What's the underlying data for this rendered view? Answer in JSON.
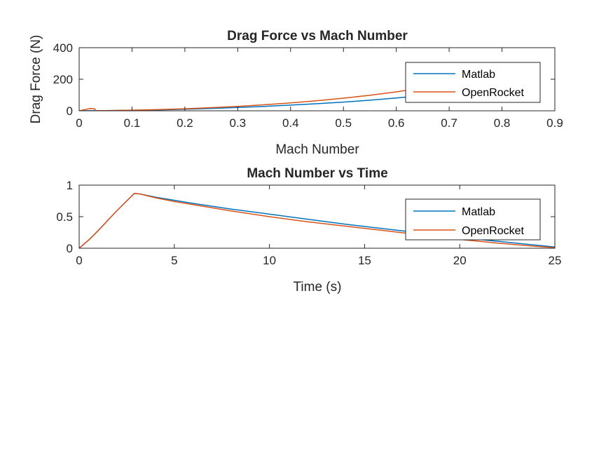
{
  "colors": {
    "matlab": "#0072BD",
    "openrocket": "#D95319",
    "axes": "#262626",
    "background": "#FFFFFF"
  },
  "chart_data": [
    {
      "type": "line",
      "title": "Drag Force vs Mach Number",
      "xlabel": "Mach Number",
      "ylabel": "Drag Force (N)",
      "xlim": [
        0,
        0.9
      ],
      "ylim": [
        0,
        400
      ],
      "xticks": [
        "0",
        "0.1",
        "0.2",
        "0.3",
        "0.4",
        "0.5",
        "0.6",
        "0.7",
        "0.8",
        "0.9"
      ],
      "yticks": [
        "0",
        "200",
        "400"
      ],
      "grid": false,
      "legend": {
        "placement": "top-right",
        "entries": [
          "Matlab",
          "OpenRocket"
        ]
      },
      "series": [
        {
          "name": "Matlab",
          "x": [
            0,
            0.05,
            0.1,
            0.15,
            0.2,
            0.25,
            0.3,
            0.35,
            0.4,
            0.45,
            0.5,
            0.55,
            0.6,
            0.65,
            0.7,
            0.75,
            0.8,
            0.85,
            0.87
          ],
          "y": [
            0,
            1,
            3,
            6,
            10,
            15,
            21,
            28,
            36,
            45,
            55,
            67,
            81,
            97,
            115,
            135,
            158,
            183,
            193
          ]
        },
        {
          "name": "OpenRocket",
          "x": [
            0,
            0.02,
            0.03,
            0.03,
            0.04,
            0.05,
            0.1,
            0.15,
            0.2,
            0.25,
            0.3,
            0.35,
            0.4,
            0.45,
            0.5,
            0.55,
            0.6,
            0.65,
            0.7,
            0.75,
            0.8,
            0.85,
            0.87
          ],
          "y": [
            0,
            14,
            12,
            0,
            1,
            1,
            4,
            8,
            13,
            20,
            28,
            38,
            50,
            64,
            80,
            98,
            120,
            146,
            175,
            207,
            243,
            283,
            300
          ]
        }
      ]
    },
    {
      "type": "line",
      "title": "Mach Number vs Time",
      "xlabel": "Time (s)",
      "ylabel": "",
      "xlim": [
        0,
        25
      ],
      "ylim": [
        0,
        1
      ],
      "xticks": [
        "0",
        "5",
        "10",
        "15",
        "20",
        "25"
      ],
      "yticks": [
        "0",
        "0.5",
        "1"
      ],
      "grid": false,
      "legend": {
        "placement": "top-right",
        "entries": [
          "Matlab",
          "OpenRocket"
        ]
      },
      "series": [
        {
          "name": "Matlab",
          "x": [
            0,
            0.5,
            1,
            1.5,
            2,
            2.5,
            2.9,
            3.2,
            4,
            5,
            6,
            8,
            10,
            12,
            14,
            16,
            18,
            20,
            22,
            24,
            25
          ],
          "y": [
            0,
            0.13,
            0.28,
            0.44,
            0.6,
            0.75,
            0.87,
            0.86,
            0.81,
            0.76,
            0.71,
            0.62,
            0.54,
            0.46,
            0.38,
            0.31,
            0.24,
            0.17,
            0.11,
            0.05,
            0.02
          ]
        },
        {
          "name": "OpenRocket",
          "x": [
            0,
            0.5,
            1,
            1.5,
            2,
            2.5,
            2.9,
            3.2,
            4,
            5,
            6,
            8,
            10,
            12,
            14,
            16,
            18,
            20,
            22,
            24,
            25
          ],
          "y": [
            0,
            0.13,
            0.28,
            0.44,
            0.6,
            0.75,
            0.87,
            0.86,
            0.8,
            0.74,
            0.69,
            0.59,
            0.5,
            0.42,
            0.35,
            0.28,
            0.21,
            0.14,
            0.08,
            0.03,
            0.01
          ]
        }
      ]
    }
  ]
}
